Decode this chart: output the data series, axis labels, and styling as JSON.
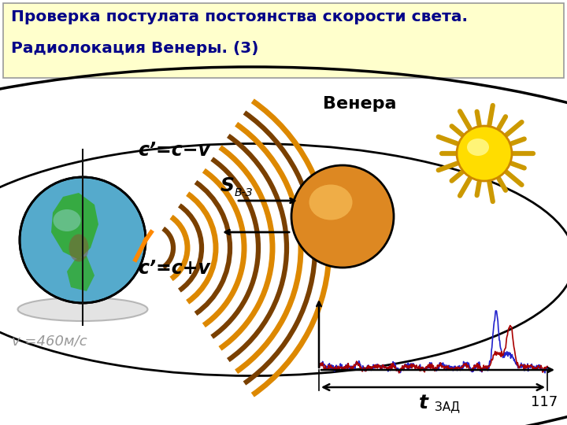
{
  "title_line1": "Проверка постулата постоянства скорости света.",
  "title_line2": "Радиолокация Венеры. (3)",
  "title_bg": "#ffffcc",
  "bg_color": "#ffffff",
  "label_venera": "Венера",
  "label_cpv": "c’=c+v",
  "label_cmv": "c’=c−v",
  "label_sbz": "S",
  "label_sbz_sub": "В-З",
  "label_v": "v =460м/с",
  "label_tzad": "t",
  "label_tzad_sub": "ЗАД",
  "label_page": "117",
  "bg_color2": "#ffffff",
  "wave_color_dark": "#7a4000",
  "wave_color_light": "#dd8800",
  "earth_blue": "#55aacc",
  "earth_blue2": "#88ccdd",
  "earth_green": "#33aa33",
  "earth_brown": "#885533",
  "venus_color": "#dd8822",
  "venus_light": "#ffcc66",
  "sun_color": "#ffdd00",
  "sun_ray_color": "#cc9900",
  "signal_blue": "#2222cc",
  "signal_red": "#aa0000",
  "orbit_lw": 2.5
}
